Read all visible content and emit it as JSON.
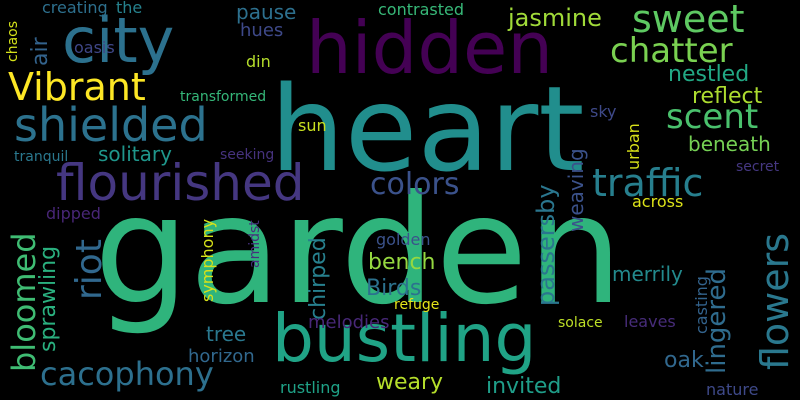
{
  "background": "#000000",
  "words": [
    {
      "text": "garden",
      "color": "#2fb47c"
    },
    {
      "text": "heart",
      "color": "#218e8d"
    },
    {
      "text": "hidden",
      "color": "#440154"
    },
    {
      "text": "city",
      "color": "#2c718e"
    },
    {
      "text": "bustling",
      "color": "#20a386"
    },
    {
      "text": "flourished",
      "color": "#453781"
    },
    {
      "text": "shielded",
      "color": "#2c728e"
    },
    {
      "text": "Vibrant",
      "color": "#fde725"
    },
    {
      "text": "sweet",
      "color": "#5ec962"
    },
    {
      "text": "chatter",
      "color": "#7ad151"
    },
    {
      "text": "jasmine",
      "color": "#a0da39"
    },
    {
      "text": "scent",
      "color": "#4ac16d"
    },
    {
      "text": "traffic",
      "color": "#277f8e"
    },
    {
      "text": "colors",
      "color": "#3b528b"
    },
    {
      "text": "flowers",
      "color": "#2a788e"
    },
    {
      "text": "bloomed",
      "color": "#3fbc73"
    },
    {
      "text": "riot",
      "color": "#31688e"
    },
    {
      "text": "cacophony",
      "color": "#2d708e"
    },
    {
      "text": "solitary",
      "color": "#1f968b"
    },
    {
      "text": "reflect",
      "color": "#addc30"
    },
    {
      "text": "nestled",
      "color": "#22a884"
    },
    {
      "text": "beneath",
      "color": "#75d054"
    },
    {
      "text": "passersby",
      "color": "#2a768e"
    },
    {
      "text": "lingered",
      "color": "#2f6c8e"
    },
    {
      "text": "chirped",
      "color": "#27808e"
    },
    {
      "text": "sprawling",
      "color": "#2ab07f"
    },
    {
      "text": "bench",
      "color": "#95d840"
    },
    {
      "text": "Birds",
      "color": "#2c728e"
    },
    {
      "text": "merrily",
      "color": "#238a8d"
    },
    {
      "text": "weaving",
      "color": "#3b528b"
    },
    {
      "text": "urban",
      "color": "#d8e219"
    },
    {
      "text": "oak",
      "color": "#31688e"
    },
    {
      "text": "melodies",
      "color": "#482878"
    },
    {
      "text": "tree",
      "color": "#2a788e"
    },
    {
      "text": "horizon",
      "color": "#31688e"
    },
    {
      "text": "weary",
      "color": "#b5de2b"
    },
    {
      "text": "invited",
      "color": "#1f9e89"
    },
    {
      "text": "rustling",
      "color": "#1fa287"
    },
    {
      "text": "nature",
      "color": "#3e4989"
    },
    {
      "text": "casting",
      "color": "#33638d"
    },
    {
      "text": "leaves",
      "color": "#472c7a"
    },
    {
      "text": "solace",
      "color": "#bddf26"
    },
    {
      "text": "refuge",
      "color": "#e5e419"
    },
    {
      "text": "golden",
      "color": "#3b528b"
    },
    {
      "text": "symphony",
      "color": "#d8e219"
    },
    {
      "text": "amidst",
      "color": "#46307e"
    },
    {
      "text": "dipped",
      "color": "#482677"
    },
    {
      "text": "across",
      "color": "#dde318"
    },
    {
      "text": "secret",
      "color": "#453781"
    },
    {
      "text": "sky",
      "color": "#3e4989"
    },
    {
      "text": "pause",
      "color": "#2d708e"
    },
    {
      "text": "hues",
      "color": "#3e4989"
    },
    {
      "text": "din",
      "color": "#b5de2b"
    },
    {
      "text": "sun",
      "color": "#c8e020"
    },
    {
      "text": "transformed",
      "color": "#35b779"
    },
    {
      "text": "seeking",
      "color": "#46327e"
    },
    {
      "text": "tranquil",
      "color": "#2a788e"
    },
    {
      "text": "air",
      "color": "#33638d"
    },
    {
      "text": "oasis",
      "color": "#3f4788"
    },
    {
      "text": "chaos",
      "color": "#d5e21a"
    },
    {
      "text": "creating",
      "color": "#2d708e"
    },
    {
      "text": "contrasted",
      "color": "#37b878"
    },
    {
      "text": "the",
      "color": "#26828e"
    }
  ]
}
